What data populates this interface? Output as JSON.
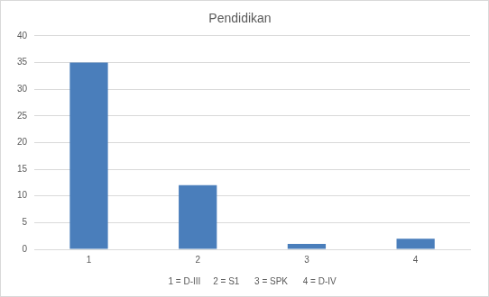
{
  "chart_data": {
    "type": "bar",
    "title": "Pendidikan",
    "categories": [
      "1",
      "2",
      "3",
      "4"
    ],
    "values": [
      35,
      12,
      1,
      2
    ],
    "color": "#4a7ebb",
    "x_label": "1 = D-III     2 = S1      3 = SPK      4 = D-IV",
    "ylim": [
      0,
      40
    ],
    "yticks": [
      0,
      5,
      10,
      15,
      20,
      25,
      30,
      35,
      40
    ],
    "grid": true
  }
}
